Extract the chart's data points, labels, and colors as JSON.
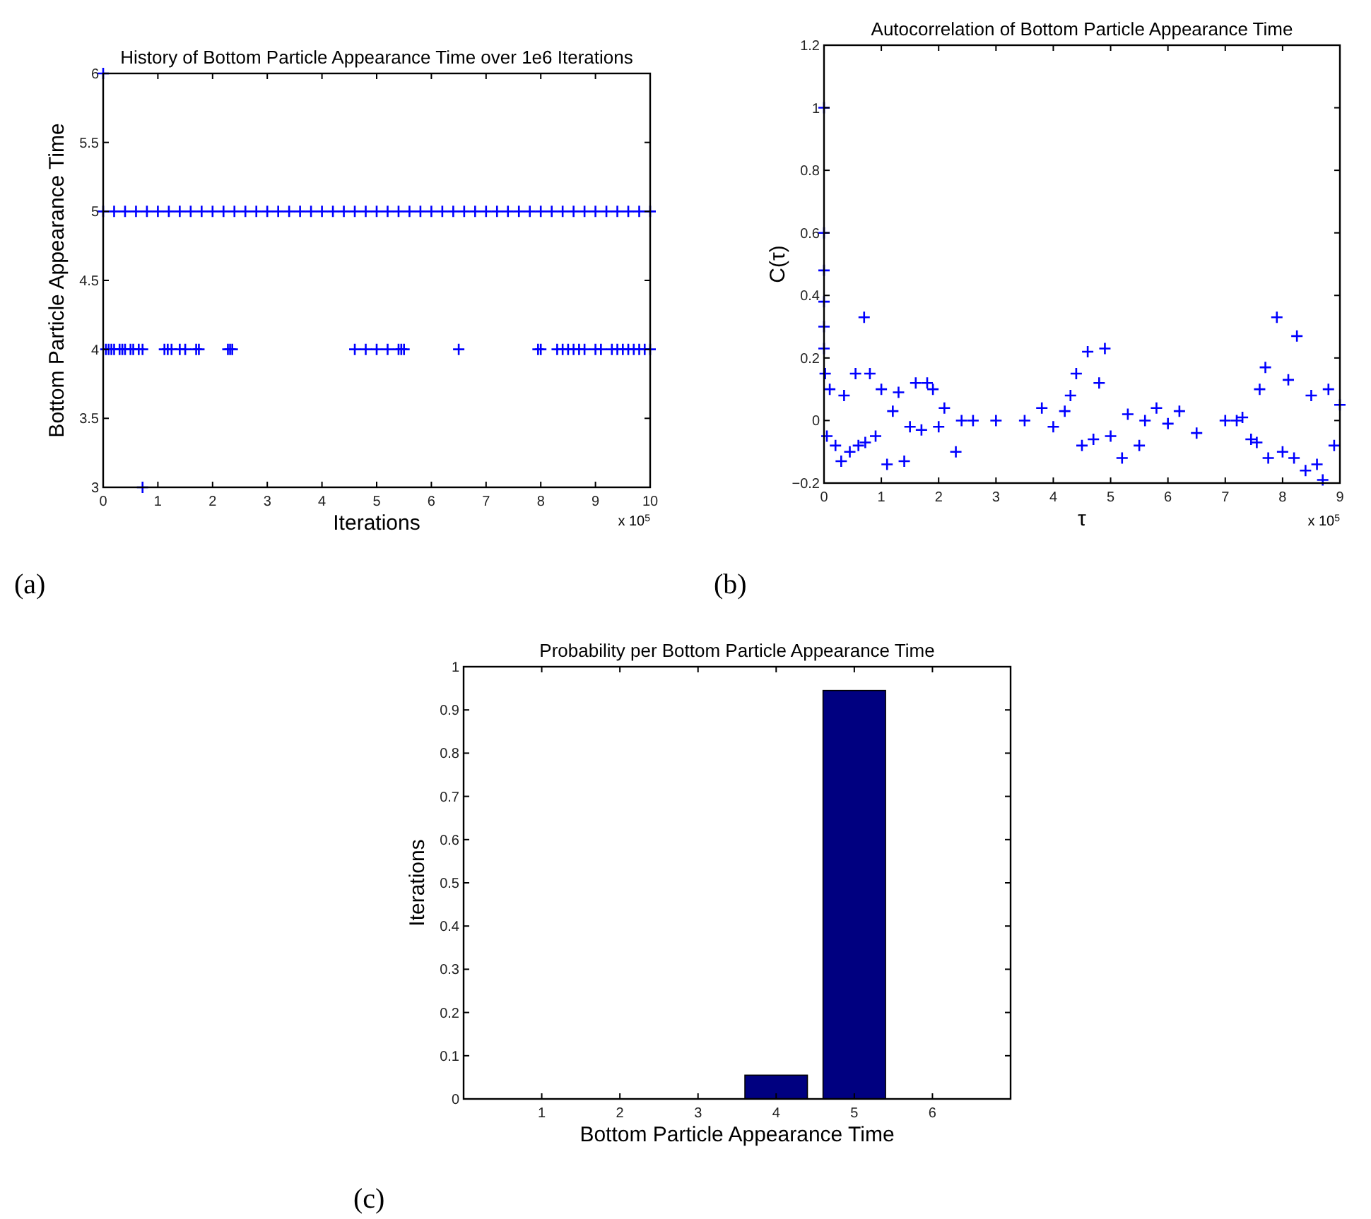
{
  "chart_data": [
    {
      "type": "scatter",
      "title": "History of Bottom Particle Appearance Time over 1e6 Iterations",
      "xlabel": "Iterations",
      "ylabel": "Bottom Particle Appearance Time",
      "color": "#0000ff",
      "marker": "cross",
      "x": [
        0,
        0.72,
        0.05,
        0.1,
        0.15,
        0.2,
        0.3,
        0.35,
        0.4,
        0.5,
        0.55,
        0.65,
        0.72,
        1.12,
        1.18,
        1.25,
        1.4,
        1.5,
        1.7,
        1.75,
        2.28,
        2.32,
        2.36,
        4.6,
        4.8,
        5.0,
        5.2,
        5.4,
        5.45,
        5.5,
        6.5,
        7.95,
        8.0,
        8.3,
        8.4,
        8.5,
        8.6,
        8.7,
        8.8,
        9.0,
        9.1,
        9.3,
        9.4,
        9.5,
        9.6,
        9.7,
        9.8,
        9.9,
        10,
        0,
        0.2,
        0.4,
        0.6,
        0.8,
        1.0,
        1.2,
        1.4,
        1.6,
        1.8,
        2.0,
        2.2,
        2.4,
        2.6,
        2.8,
        3.0,
        3.2,
        3.4,
        3.6,
        3.8,
        4.0,
        4.2,
        4.4,
        4.6,
        4.8,
        5.0,
        5.2,
        5.4,
        5.6,
        5.8,
        6.0,
        6.2,
        6.4,
        6.6,
        6.8,
        7.0,
        7.2,
        7.4,
        7.6,
        7.8,
        8.0,
        8.2,
        8.4,
        8.6,
        8.8,
        9.0,
        9.2,
        9.4,
        9.6,
        9.8,
        10
      ],
      "values": [
        6,
        3,
        4,
        4,
        4,
        4,
        4,
        4,
        4,
        4,
        4,
        4,
        4,
        4,
        4,
        4,
        4,
        4,
        4,
        4,
        4,
        4,
        4,
        4,
        4,
        4,
        4,
        4,
        4,
        4,
        4,
        4,
        4,
        4,
        4,
        4,
        4,
        4,
        4,
        4,
        4,
        4,
        4,
        4,
        4,
        4,
        4,
        4,
        4,
        5,
        5,
        5,
        5,
        5,
        5,
        5,
        5,
        5,
        5,
        5,
        5,
        5,
        5,
        5,
        5,
        5,
        5,
        5,
        5,
        5,
        5,
        5,
        5,
        5,
        5,
        5,
        5,
        5,
        5,
        5,
        5,
        5,
        5,
        5,
        5,
        5,
        5,
        5,
        5,
        5,
        5,
        5,
        5,
        5,
        5,
        5,
        5,
        5,
        5,
        5
      ],
      "xlim": [
        0,
        10
      ],
      "xticks": [
        0,
        1,
        2,
        3,
        4,
        5,
        6,
        7,
        8,
        9,
        10
      ],
      "ylim": [
        3,
        6
      ],
      "yticks": [
        3,
        3.5,
        4,
        4.5,
        5,
        5.5,
        6
      ],
      "annotations": [
        "x 10$^{5}$",
        "(a)"
      ]
    },
    {
      "type": "scatter",
      "title": "Autocorrelation of Bottom Particle Appearance Time",
      "xlabel": "τ",
      "ylabel": "C(τ)",
      "color": "#0000ff",
      "marker": "cross",
      "x": [
        0,
        0,
        0,
        0,
        0,
        0,
        0.02,
        0.05,
        0.1,
        0.2,
        0.3,
        0.35,
        0.45,
        0.55,
        0.6,
        0.7,
        0.72,
        0.8,
        0.9,
        1.0,
        1.1,
        1.2,
        1.3,
        1.4,
        1.5,
        1.6,
        1.7,
        1.8,
        1.9,
        2.0,
        2.1,
        2.3,
        2.4,
        2.6,
        3.0,
        3.5,
        3.8,
        4.0,
        4.2,
        4.3,
        4.4,
        4.5,
        4.6,
        4.7,
        4.8,
        4.9,
        5.0,
        5.2,
        5.3,
        5.5,
        5.6,
        5.8,
        6.0,
        6.2,
        6.5,
        7.0,
        7.2,
        7.3,
        7.45,
        7.55,
        7.6,
        7.7,
        7.75,
        7.9,
        8.0,
        8.1,
        8.2,
        8.25,
        8.4,
        8.5,
        8.6,
        8.7,
        8.8,
        8.9,
        9.0
      ],
      "values": [
        1.0,
        0.6,
        0.48,
        0.38,
        0.3,
        0.23,
        0.15,
        -0.05,
        0.1,
        -0.08,
        -0.13,
        0.08,
        -0.1,
        0.15,
        -0.08,
        0.33,
        -0.07,
        0.15,
        -0.05,
        0.1,
        -0.14,
        0.03,
        0.09,
        -0.13,
        -0.02,
        0.12,
        -0.03,
        0.12,
        0.1,
        -0.02,
        0.04,
        -0.1,
        0,
        0,
        0,
        0,
        0.04,
        -0.02,
        0.03,
        0.08,
        0.15,
        -0.08,
        0.22,
        -0.06,
        0.12,
        0.23,
        -0.05,
        -0.12,
        0.02,
        -0.08,
        0,
        0.04,
        -0.01,
        0.03,
        -0.04,
        0,
        0,
        0.01,
        -0.06,
        -0.07,
        0.1,
        0.17,
        -0.12,
        0.33,
        -0.1,
        0.13,
        -0.12,
        0.27,
        -0.16,
        0.08,
        -0.14,
        -0.19,
        0.1,
        -0.08,
        0.05
      ],
      "xlim": [
        0,
        9
      ],
      "xticks": [
        0,
        1,
        2,
        3,
        4,
        5,
        6,
        7,
        8,
        9
      ],
      "ylim": [
        -0.2,
        1.2
      ],
      "yticks": [
        {
          "value": -0.2,
          "label": "−0.2"
        },
        0,
        0.2,
        0.4,
        0.6,
        0.8,
        1,
        1.2
      ],
      "annotations": [
        "x 10$^{5}$",
        "(b)"
      ]
    },
    {
      "type": "bar",
      "title": "Probability per Bottom Particle Appearance Time",
      "xlabel": "Bottom Particle Appearance Time",
      "ylabel": "Iterations",
      "color": "#000080",
      "categories": [
        "1",
        "2",
        "3",
        "4",
        "5",
        "6"
      ],
      "values": [
        0,
        0,
        0,
        0.055,
        0.945,
        0
      ],
      "ylim": [
        0,
        1
      ],
      "yticks": [
        0,
        0.1,
        0.2,
        0.3,
        0.4,
        0.5,
        0.6,
        0.7,
        0.8,
        0.9,
        1
      ],
      "annotations": [
        "(c)"
      ]
    }
  ]
}
